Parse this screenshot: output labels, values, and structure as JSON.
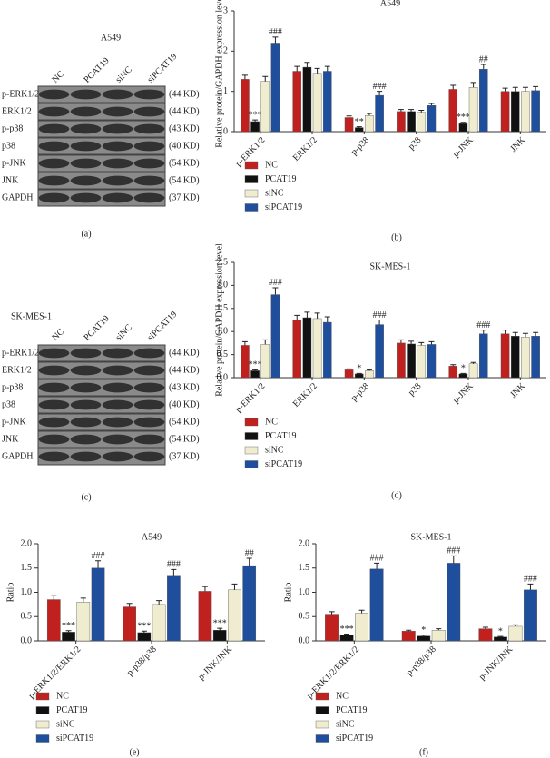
{
  "blots": [
    {
      "panel": "(a)",
      "title": "A549",
      "lanes": [
        "NC",
        "PCAT19",
        "siNC",
        "siPCAT19"
      ],
      "rows": [
        {
          "protein": "p-ERK1/2",
          "size": "(44 KD)"
        },
        {
          "protein": "ERK1/2",
          "size": "(44 KD)"
        },
        {
          "protein": "p-p38",
          "size": "(43 KD)"
        },
        {
          "protein": "p38",
          "size": "(40 KD)"
        },
        {
          "protein": "p-JNK",
          "size": "(54 KD)"
        },
        {
          "protein": "JNK",
          "size": "(54 KD)"
        },
        {
          "protein": "GAPDH",
          "size": "(37 KD)"
        }
      ]
    },
    {
      "panel": "(c)",
      "title": "SK-MES-1",
      "lanes": [
        "NC",
        "PCAT19",
        "siNC",
        "siPCAT19"
      ],
      "rows": [
        {
          "protein": "p-ERK1/2",
          "size": "(44 KD)"
        },
        {
          "protein": "ERK1/2",
          "size": "(44 KD)"
        },
        {
          "protein": "p-p38",
          "size": "(43 KD)"
        },
        {
          "protein": "p38",
          "size": "(40 KD)"
        },
        {
          "protein": "p-JNK",
          "size": "(54 KD)"
        },
        {
          "protein": "JNK",
          "size": "(54 KD)"
        },
        {
          "protein": "GAPDH",
          "size": "(37 KD)"
        }
      ]
    }
  ],
  "chart_data": [
    {
      "type": "bar",
      "panel": "(b)",
      "title": "A549",
      "y_label": "Relative protein/GAPDH expression level",
      "categories": [
        "p-ERK1/2",
        "ERK1/2",
        "p-p38",
        "p38",
        "p-JNK",
        "JNK"
      ],
      "ylim": [
        0,
        3
      ],
      "yticks": [
        0,
        1,
        2,
        3
      ],
      "series": [
        {
          "name": "NC",
          "color": "#c0211f",
          "values": [
            1.3,
            1.5,
            0.35,
            0.5,
            1.05,
            1.0
          ],
          "errors": [
            0.1,
            0.12,
            0.04,
            0.05,
            0.1,
            0.08
          ],
          "sig": [
            null,
            null,
            null,
            null,
            null,
            null
          ]
        },
        {
          "name": "PCAT19",
          "color": "#111111",
          "values": [
            0.25,
            1.6,
            0.1,
            0.5,
            0.2,
            1.0
          ],
          "errors": [
            0.04,
            0.12,
            0.02,
            0.05,
            0.03,
            0.1
          ],
          "sig": [
            "***",
            null,
            "**",
            null,
            "***",
            null
          ]
        },
        {
          "name": "siNC",
          "color": "#efeccf",
          "values": [
            1.25,
            1.45,
            0.4,
            0.48,
            1.1,
            1.0
          ],
          "errors": [
            0.12,
            0.12,
            0.05,
            0.05,
            0.12,
            0.1
          ],
          "sig": [
            null,
            null,
            null,
            null,
            null,
            null
          ]
        },
        {
          "name": "siPCAT19",
          "color": "#1f4e9c",
          "values": [
            2.2,
            1.5,
            0.9,
            0.65,
            1.55,
            1.02
          ],
          "errors": [
            0.15,
            0.12,
            0.1,
            0.05,
            0.12,
            0.1
          ],
          "sig": [
            "###",
            null,
            "###",
            null,
            "##",
            null
          ]
        }
      ]
    },
    {
      "type": "bar",
      "panel": "(d)",
      "title": "SK-MES-1",
      "y_label": "Relative protein/GAPDH expression level",
      "categories": [
        "p-ERK1/2",
        "ERK1/2",
        "p-p38",
        "p38",
        "p-JNK",
        "JNK"
      ],
      "ylim": [
        0,
        2.5
      ],
      "yticks": [
        {
          "value": 0,
          "label": "0.0"
        },
        0.5,
        {
          "value": 1,
          "label": "1.0"
        },
        1.5,
        {
          "value": 2,
          "label": "2.0"
        },
        2.5
      ],
      "series": [
        {
          "name": "NC",
          "color": "#c0211f",
          "values": [
            0.7,
            1.25,
            0.17,
            0.75,
            0.25,
            0.95
          ],
          "errors": [
            0.08,
            0.1,
            0.02,
            0.07,
            0.03,
            0.08
          ],
          "sig": [
            null,
            null,
            null,
            null,
            null,
            null
          ]
        },
        {
          "name": "PCAT19",
          "color": "#111111",
          "values": [
            0.15,
            1.3,
            0.08,
            0.73,
            0.08,
            0.9
          ],
          "errors": [
            0.02,
            0.12,
            0.01,
            0.06,
            0.01,
            0.08
          ],
          "sig": [
            "***",
            null,
            "*",
            null,
            "*",
            null
          ]
        },
        {
          "name": "siNC",
          "color": "#efeccf",
          "values": [
            0.72,
            1.28,
            0.15,
            0.7,
            0.3,
            0.88
          ],
          "errors": [
            0.1,
            0.12,
            0.02,
            0.06,
            0.03,
            0.08
          ],
          "sig": [
            null,
            null,
            null,
            null,
            null,
            null
          ]
        },
        {
          "name": "siPCAT19",
          "color": "#1f4e9c",
          "values": [
            1.8,
            1.2,
            1.15,
            0.72,
            0.95,
            0.9
          ],
          "errors": [
            0.15,
            0.12,
            0.1,
            0.06,
            0.08,
            0.08
          ],
          "sig": [
            "###",
            null,
            "###",
            null,
            "###",
            null
          ]
        }
      ]
    },
    {
      "type": "bar",
      "panel": "(e)",
      "title": "A549",
      "y_label": "Ratio",
      "categories": [
        "p-ERK1/2/ERK1/2",
        "p-p38/p38",
        "p-JNK/JNK"
      ],
      "ylim": [
        0,
        2
      ],
      "yticks": [
        {
          "value": 0,
          "label": "0.0"
        },
        0.5,
        {
          "value": 1,
          "label": "1.0"
        },
        1.5,
        {
          "value": 2,
          "label": "2.0"
        }
      ],
      "series": [
        {
          "name": "NC",
          "color": "#c0211f",
          "values": [
            0.85,
            0.7,
            1.02
          ],
          "errors": [
            0.08,
            0.07,
            0.1
          ],
          "sig": [
            null,
            null,
            null
          ]
        },
        {
          "name": "PCAT19",
          "color": "#111111",
          "values": [
            0.18,
            0.17,
            0.22
          ],
          "errors": [
            0.03,
            0.03,
            0.04
          ],
          "sig": [
            "***",
            "***",
            "***"
          ]
        },
        {
          "name": "siNC",
          "color": "#efeccf",
          "values": [
            0.8,
            0.75,
            1.05
          ],
          "errors": [
            0.08,
            0.08,
            0.12
          ],
          "sig": [
            null,
            null,
            null
          ]
        },
        {
          "name": "siPCAT19",
          "color": "#1f4e9c",
          "values": [
            1.5,
            1.35,
            1.55
          ],
          "errors": [
            0.15,
            0.12,
            0.15
          ],
          "sig": [
            "###",
            "###",
            "##"
          ]
        }
      ]
    },
    {
      "type": "bar",
      "panel": "(f)",
      "title": "SK-MES-1",
      "y_label": "Ratio",
      "categories": [
        "p-ERK1/2/ERK1/2",
        "p-p38/p38",
        "p-JNK/JNK"
      ],
      "ylim": [
        0,
        2
      ],
      "yticks": [
        {
          "value": 0,
          "label": "0.0"
        },
        0.5,
        {
          "value": 1,
          "label": "1.0"
        },
        1.5,
        {
          "value": 2,
          "label": "2.0"
        }
      ],
      "series": [
        {
          "name": "NC",
          "color": "#c0211f",
          "values": [
            0.55,
            0.2,
            0.25
          ],
          "errors": [
            0.05,
            0.02,
            0.03
          ],
          "sig": [
            null,
            null,
            null
          ]
        },
        {
          "name": "PCAT19",
          "color": "#111111",
          "values": [
            0.12,
            0.1,
            0.08
          ],
          "errors": [
            0.02,
            0.02,
            0.01
          ],
          "sig": [
            "***",
            "*",
            "*"
          ]
        },
        {
          "name": "siNC",
          "color": "#efeccf",
          "values": [
            0.57,
            0.22,
            0.3
          ],
          "errors": [
            0.06,
            0.03,
            0.03
          ],
          "sig": [
            null,
            null,
            null
          ]
        },
        {
          "name": "siPCAT19",
          "color": "#1f4e9c",
          "values": [
            1.48,
            1.6,
            1.05
          ],
          "errors": [
            0.12,
            0.15,
            0.12
          ],
          "sig": [
            "###",
            "###",
            "###"
          ]
        }
      ]
    }
  ]
}
